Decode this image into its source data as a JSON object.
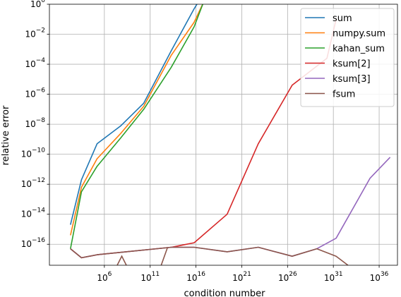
{
  "chart_data": {
    "type": "line",
    "xlabel": "condition number",
    "ylabel": "relative error",
    "xscale": "log",
    "yscale": "log",
    "xlim_exp": [
      0,
      38
    ],
    "ylim_exp": [
      -17.4,
      0
    ],
    "grid": true,
    "legend_position": "top-right",
    "x_ticks": [
      {
        "exp": 6,
        "base": "10",
        "sup": "6"
      },
      {
        "exp": 11,
        "base": "10",
        "sup": "11"
      },
      {
        "exp": 16,
        "base": "10",
        "sup": "16"
      },
      {
        "exp": 21,
        "base": "10",
        "sup": "21"
      },
      {
        "exp": 26,
        "base": "10",
        "sup": "26"
      },
      {
        "exp": 31,
        "base": "10",
        "sup": "31"
      },
      {
        "exp": 36,
        "base": "10",
        "sup": "36"
      }
    ],
    "y_ticks": [
      {
        "exp": 0,
        "base": "10",
        "sup": "0"
      },
      {
        "exp": -2,
        "base": "10",
        "sup": "−2"
      },
      {
        "exp": -4,
        "base": "10",
        "sup": "−4"
      },
      {
        "exp": -6,
        "base": "10",
        "sup": "−6"
      },
      {
        "exp": -8,
        "base": "10",
        "sup": "−8"
      },
      {
        "exp": -10,
        "base": "10",
        "sup": "−10"
      },
      {
        "exp": -12,
        "base": "10",
        "sup": "−12"
      },
      {
        "exp": -14,
        "base": "10",
        "sup": "−14"
      },
      {
        "exp": -16,
        "base": "10",
        "sup": "−16"
      }
    ],
    "series": [
      {
        "name": "sum",
        "color": "#1f77b4",
        "points": [
          [
            2.3,
            -14.7
          ],
          [
            3.5,
            -11.7
          ],
          [
            5.2,
            -9.3
          ],
          [
            7.8,
            -8.1
          ],
          [
            10.3,
            -6.6
          ],
          [
            13.3,
            -3.1
          ],
          [
            15.8,
            -0.3
          ],
          [
            16.2,
            0.1
          ]
        ]
      },
      {
        "name": "numpy.sum",
        "color": "#ff7f0e",
        "points": [
          [
            2.3,
            -15.4
          ],
          [
            3.5,
            -12.2
          ],
          [
            5.2,
            -10.3
          ],
          [
            7.8,
            -8.6
          ],
          [
            10.3,
            -6.8
          ],
          [
            13.3,
            -3.4
          ],
          [
            15.8,
            -1.2
          ],
          [
            16.8,
            0.1
          ]
        ]
      },
      {
        "name": "kahan_sum",
        "color": "#2ca02c",
        "points": [
          [
            2.3,
            -16.3
          ],
          [
            3.5,
            -12.5
          ],
          [
            5.2,
            -10.8
          ],
          [
            7.8,
            -8.9
          ],
          [
            10.3,
            -7.0
          ],
          [
            13.3,
            -4.2
          ],
          [
            15.8,
            -1.5
          ],
          [
            16.8,
            0.1
          ]
        ]
      },
      {
        "name": "ksum[2]",
        "color": "#d62728",
        "points": [
          [
            2.3,
            -16.3
          ],
          [
            3.5,
            -16.9
          ],
          [
            5.2,
            -16.7
          ],
          [
            13.3,
            -16.2
          ],
          [
            15.8,
            -15.9
          ],
          [
            19.4,
            -14.0
          ],
          [
            22.8,
            -9.3
          ],
          [
            26.5,
            -5.4
          ],
          [
            30.3,
            -3.6
          ],
          [
            31.3,
            -1.0
          ]
        ]
      },
      {
        "name": "ksum[3]",
        "color": "#9467bd",
        "points": [
          [
            2.3,
            -16.3
          ],
          [
            3.5,
            -16.9
          ],
          [
            5.2,
            -16.7
          ],
          [
            13.3,
            -16.2
          ],
          [
            15.8,
            -16.2
          ],
          [
            19.4,
            -16.5
          ],
          [
            22.8,
            -16.2
          ],
          [
            26.5,
            -16.8
          ],
          [
            29.2,
            -16.3
          ],
          [
            31.3,
            -15.6
          ],
          [
            35.0,
            -11.6
          ],
          [
            37.2,
            -10.2
          ]
        ]
      },
      {
        "name": "fsum",
        "color": "#8c564b",
        "points": [
          [
            2.3,
            -16.3
          ],
          [
            3.5,
            -16.9
          ],
          [
            5.2,
            -16.7
          ],
          [
            13.3,
            -16.2
          ],
          [
            15.8,
            -16.2
          ],
          [
            19.4,
            -16.5
          ],
          [
            22.8,
            -16.2
          ],
          [
            26.5,
            -16.8
          ],
          [
            29.2,
            -16.3
          ],
          [
            31.3,
            -16.8
          ],
          [
            32.6,
            -17.4
          ]
        ]
      }
    ],
    "series_behind_axis": [
      {
        "name": "",
        "color": "#8c564b",
        "points": [
          [
            7.4,
            -17.4
          ],
          [
            7.9,
            -16.8
          ],
          [
            8.4,
            -17.4
          ]
        ]
      },
      {
        "name": "",
        "color": "#8c564b",
        "points": [
          [
            12.2,
            -17.4
          ],
          [
            12.9,
            -16.2
          ]
        ]
      }
    ]
  }
}
